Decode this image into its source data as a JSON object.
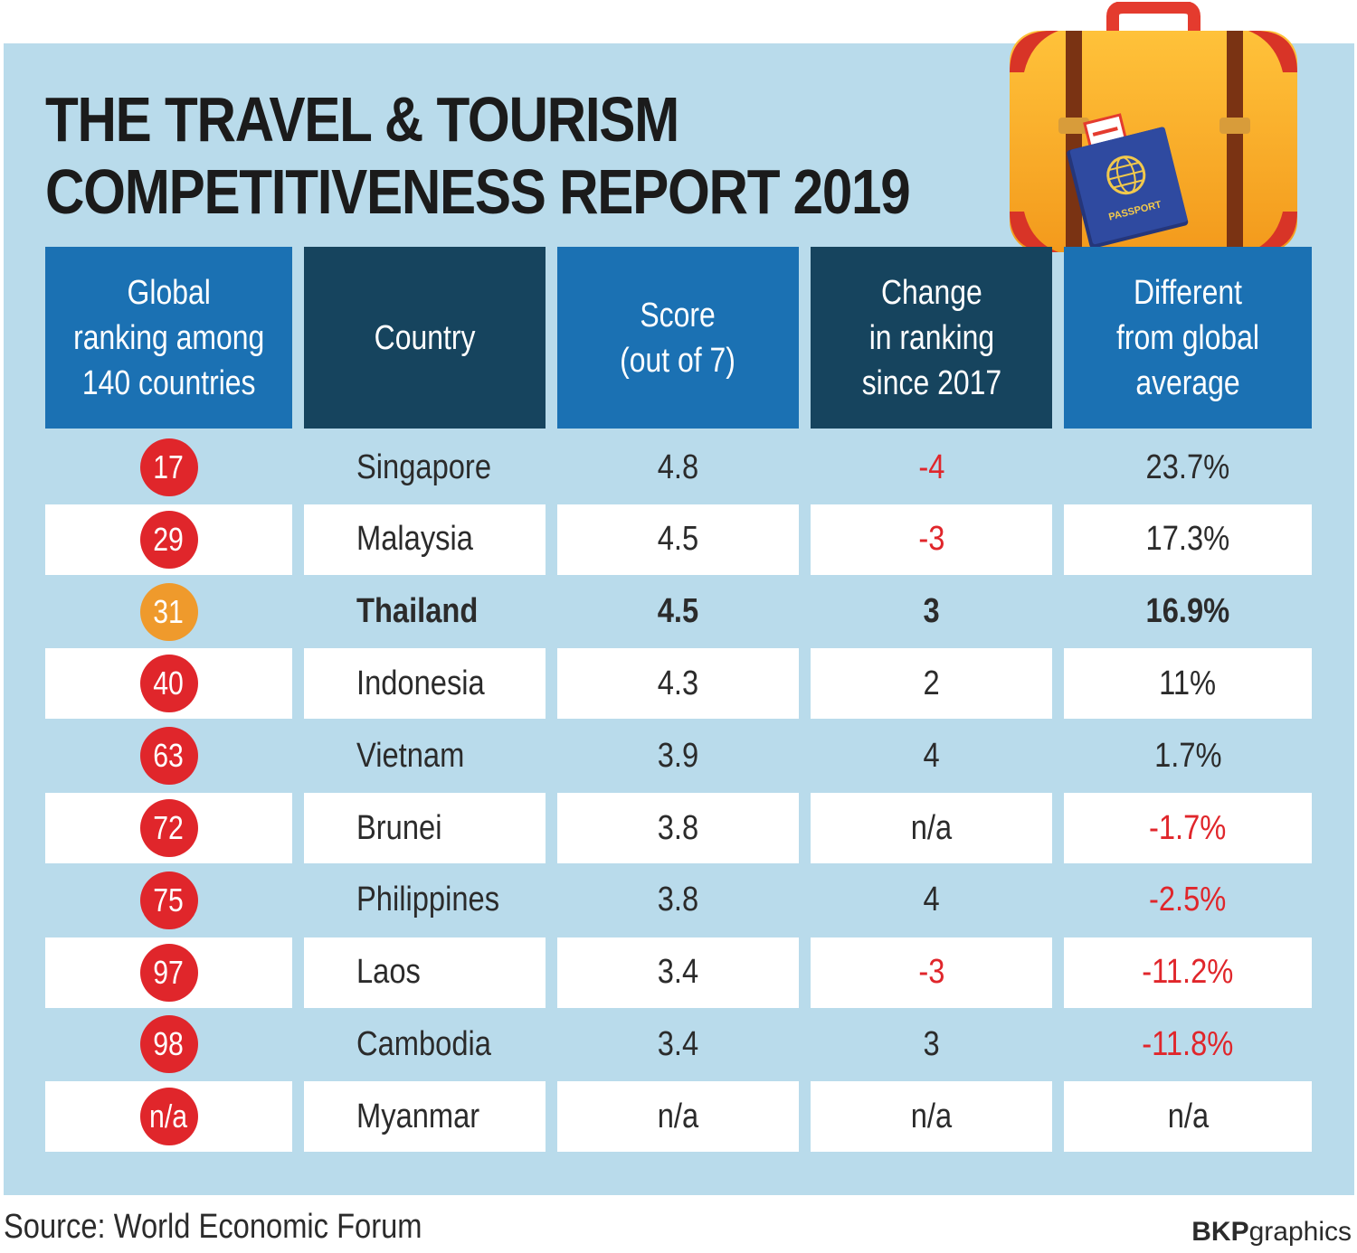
{
  "title_line1": "THE TRAVEL & TOURISM",
  "title_line2": "COMPETITIVENESS REPORT 2019",
  "source": "Source: World Economic Forum",
  "credit_bold": "BKP",
  "credit_rest": "graphics",
  "passport_label": "PASSPORT",
  "colors": {
    "panel": "#b9dbeb",
    "header_light": "#1b71b3",
    "header_dark": "#16445e",
    "badge": "#e0262b",
    "badge_highlight": "#ef9a2c",
    "negative": "#e0262b"
  },
  "chart_data": {
    "type": "table",
    "columns": [
      "Global\nranking among\n140 countries",
      "Country",
      "Score\n(out of 7)",
      "Change\nin ranking\nsince 2017",
      "Different\nfrom global\naverage"
    ],
    "rows": [
      {
        "rank": "17",
        "country": "Singapore",
        "score": "4.8",
        "change": "-4",
        "diff": "23.7%",
        "highlight": false
      },
      {
        "rank": "29",
        "country": "Malaysia",
        "score": "4.5",
        "change": "-3",
        "diff": "17.3%",
        "highlight": false
      },
      {
        "rank": "31",
        "country": "Thailand",
        "score": "4.5",
        "change": "3",
        "diff": "16.9%",
        "highlight": true
      },
      {
        "rank": "40",
        "country": "Indonesia",
        "score": "4.3",
        "change": "2",
        "diff": "11%",
        "highlight": false
      },
      {
        "rank": "63",
        "country": "Vietnam",
        "score": "3.9",
        "change": "4",
        "diff": "1.7%",
        "highlight": false
      },
      {
        "rank": "72",
        "country": "Brunei",
        "score": "3.8",
        "change": "n/a",
        "diff": "-1.7%",
        "highlight": false
      },
      {
        "rank": "75",
        "country": "Philippines",
        "score": "3.8",
        "change": "4",
        "diff": "-2.5%",
        "highlight": false
      },
      {
        "rank": "97",
        "country": "Laos",
        "score": "3.4",
        "change": "-3",
        "diff": "-11.2%",
        "highlight": false
      },
      {
        "rank": "98",
        "country": "Cambodia",
        "score": "3.4",
        "change": "3",
        "diff": "-11.8%",
        "highlight": false
      },
      {
        "rank": "n/a",
        "country": "Myanmar",
        "score": "n/a",
        "change": "n/a",
        "diff": "n/a",
        "highlight": false
      }
    ]
  }
}
